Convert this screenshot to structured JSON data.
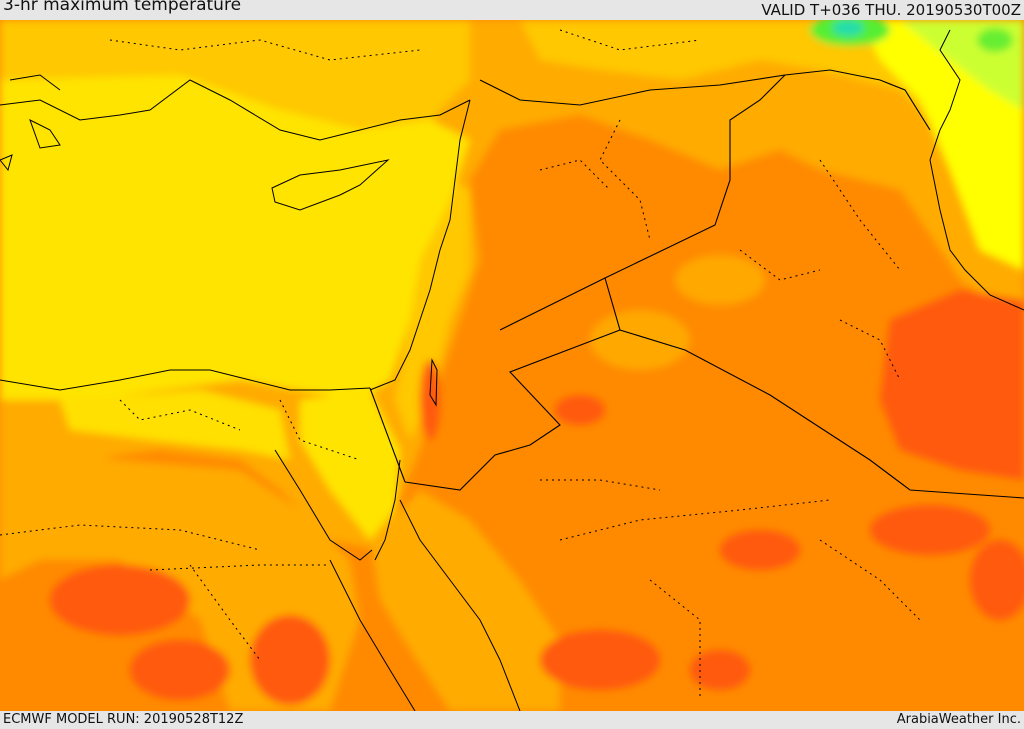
{
  "header": {
    "title": "3-hr maximum temperature",
    "valid": "VALID T+036 THU. 20190530T00Z"
  },
  "footer": {
    "model_run": "ECMWF MODEL RUN: 20190528T12Z",
    "credit": "ArabiaWeather Inc."
  },
  "palette": {
    "deep_orange": "#ff5a0a",
    "orange": "#ff8200",
    "amber": "#ffa800",
    "gold": "#ffc800",
    "yellow": "#ffff00",
    "yellow_green": "#ccff33",
    "green": "#55ee33",
    "cyan": "#22ddaa",
    "lines": "#000000"
  }
}
